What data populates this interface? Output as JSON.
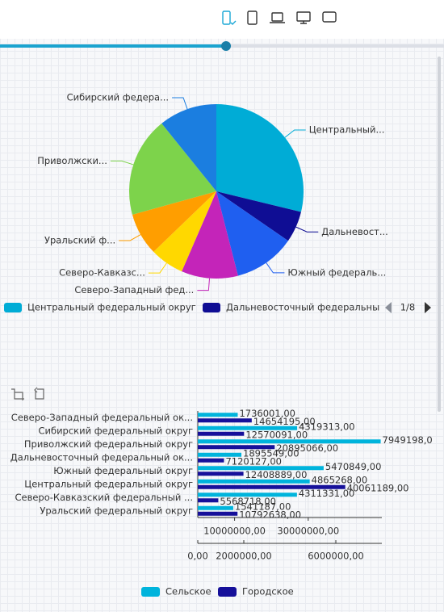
{
  "chart_data": [
    {
      "type": "pie",
      "categories": [
        "Центральный...",
        "Дальневост...",
        "Южный федераль...",
        "Северо-Западный фед...",
        "Северо-Кавказс...",
        "Уральский ф...",
        "Приволжски...",
        "Сибирский федера..."
      ],
      "values": [
        28.8,
        5.8,
        11.4,
        10.5,
        6.3,
        7.9,
        18.5,
        10.8
      ],
      "colors": [
        "#00acd6",
        "#0f0d94",
        "#1f5ff0",
        "#c424b9",
        "#ffd800",
        "#ff9e00",
        "#7dd34b",
        "#1b7ee0"
      ],
      "legend": [
        "Центральный федеральный округ",
        "Дальневосточный федеральны"
      ],
      "legend_page": "1/8"
    },
    {
      "type": "hbar",
      "categories": [
        "Северо-Западный федеральный ок...",
        "Сибирский федеральный округ",
        "Приволжский федеральный округ",
        "Дальневосточный федеральный ок...",
        "Южный федеральный округ",
        "Центральный федеральный округ",
        "Северо-Кавказский федеральный ...",
        "Уральский федеральный округ"
      ],
      "series": [
        {
          "name": "Сельское",
          "color": "#00b4dc",
          "values": [
            1736001,
            4319313,
            7949198,
            1895549,
            5470849,
            4865268,
            4311331,
            1541187
          ],
          "value_labels": [
            "1736001,00",
            "4319313,00",
            "7949198,0",
            "1895549,00",
            "5470849,00",
            "4865268,00",
            "4311331,00",
            "1541187,00"
          ]
        },
        {
          "name": "Городское",
          "color": "#16109a",
          "axis": "x2",
          "values": [
            14654195,
            12570091,
            20895066,
            7120127,
            12408889,
            40061189,
            5568718,
            10792638
          ],
          "value_labels": [
            "14654195,00",
            "12570091,00",
            "20895066,00",
            "7120127,00",
            "12408889,00",
            "40061189,00",
            "5568718,00",
            "10792638,00"
          ]
        }
      ],
      "xlim": [
        0,
        8000000
      ],
      "xticks": [
        {
          "value": 0,
          "label": "0,00"
        },
        {
          "value": 2000000,
          "label": "2000000,00"
        },
        {
          "value": 6000000,
          "label": "6000000,00"
        }
      ],
      "x2lim": [
        0,
        50000000
      ],
      "x2ticks": [
        {
          "value": 10000000,
          "label": "10000000,00"
        },
        {
          "value": 30000000,
          "label": "30000000,00"
        }
      ]
    }
  ]
}
